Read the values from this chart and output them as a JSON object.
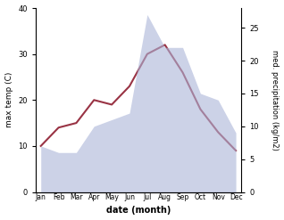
{
  "months": [
    "Jan",
    "Feb",
    "Mar",
    "Apr",
    "May",
    "Jun",
    "Jul",
    "Aug",
    "Sep",
    "Oct",
    "Nov",
    "Dec"
  ],
  "temperature": [
    10,
    14,
    15,
    20,
    19,
    23,
    30,
    32,
    26,
    18,
    13,
    9
  ],
  "precipitation": [
    7,
    6,
    6,
    10,
    11,
    12,
    27,
    22,
    22,
    15,
    14,
    9
  ],
  "temp_ylim": [
    0,
    40
  ],
  "precip_ylim": [
    0,
    28
  ],
  "temp_yticks": [
    0,
    10,
    20,
    30,
    40
  ],
  "precip_yticks": [
    0,
    5,
    10,
    15,
    20,
    25
  ],
  "xlabel": "date (month)",
  "ylabel_left": "max temp (C)",
  "ylabel_right": "med. precipitation (kg/m2)",
  "fill_color": "#aab4d8",
  "line_color": "#993344",
  "fill_alpha": 0.6,
  "bg_color": "#ffffff"
}
